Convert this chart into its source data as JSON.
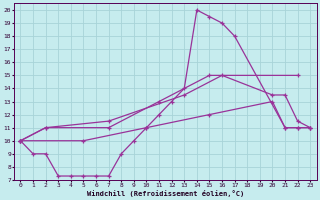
{
  "xlabel": "Windchill (Refroidissement éolien,°C)",
  "background_color": "#c6ecee",
  "grid_color": "#a8d4d8",
  "line_color": "#993399",
  "xlim_min": -0.5,
  "xlim_max": 23.5,
  "ylim_min": 7,
  "ylim_max": 20.5,
  "line1_x": [
    0,
    1,
    2,
    3,
    4,
    5,
    6,
    7,
    8,
    9,
    10,
    11,
    12,
    13,
    14,
    15,
    16,
    17,
    21,
    22,
    23
  ],
  "line1_y": [
    10,
    9,
    9,
    7.3,
    7.3,
    7.3,
    7.3,
    7.3,
    9,
    10,
    11,
    12,
    13,
    14,
    20,
    19.5,
    19,
    18,
    11,
    11,
    11
  ],
  "line2_x": [
    0,
    2,
    7,
    11,
    15,
    22
  ],
  "line2_y": [
    10,
    11,
    11,
    13,
    15,
    15
  ],
  "line3_x": [
    0,
    2,
    7,
    13,
    16,
    20,
    21,
    22,
    23
  ],
  "line3_y": [
    10,
    11,
    11.5,
    13.5,
    15,
    13.5,
    13.5,
    11.5,
    11
  ],
  "line4_x": [
    0,
    5,
    10,
    15,
    20,
    21,
    22,
    23
  ],
  "line4_y": [
    10,
    10,
    11,
    12,
    13,
    11,
    11,
    11
  ]
}
